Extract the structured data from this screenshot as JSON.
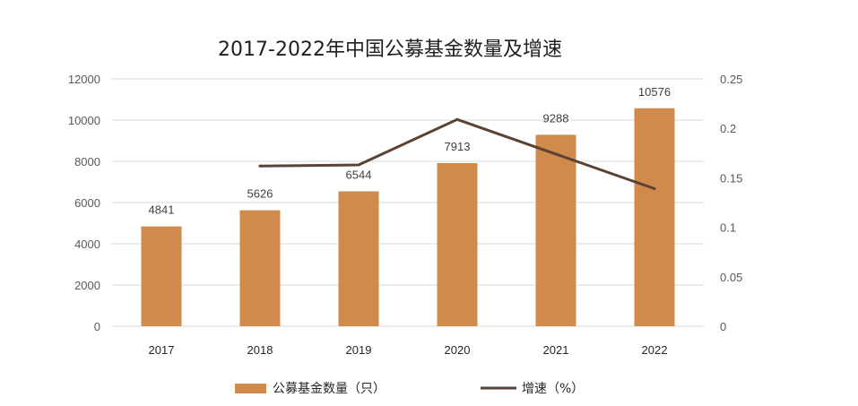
{
  "colors": {
    "bar": "#d08a4b",
    "line": "#5a4334",
    "grid": "#d9d9d9",
    "tick_text": "#595959"
  },
  "chart_data": {
    "type": "bar",
    "title": "2017-2022年中国公募基金数量及增速",
    "categories": [
      "2017",
      "2018",
      "2019",
      "2020",
      "2021",
      "2022"
    ],
    "series": [
      {
        "name": "公募基金数量（只）",
        "type": "bar",
        "axis": "left",
        "values": [
          4841,
          5626,
          6544,
          7913,
          9288,
          10576
        ]
      },
      {
        "name": "增速（%）",
        "type": "line",
        "axis": "right",
        "values": [
          null,
          0.162,
          0.163,
          0.209,
          0.174,
          0.139
        ]
      }
    ],
    "data_labels": [
      "4841",
      "5626",
      "6544",
      "7913",
      "9288",
      "10576"
    ],
    "ylim": [
      0,
      12000
    ],
    "y_ticks": [
      "0",
      "2000",
      "4000",
      "6000",
      "8000",
      "10000",
      "12000"
    ],
    "y2lim": [
      0,
      0.25
    ],
    "y2_ticks": [
      "0",
      "0.05",
      "0.1",
      "0.15",
      "0.2",
      "0.25"
    ],
    "grid": true,
    "legend": {
      "position": "bottom",
      "bar_label": "公募基金数量（只）",
      "line_label": "增速（%）"
    }
  }
}
